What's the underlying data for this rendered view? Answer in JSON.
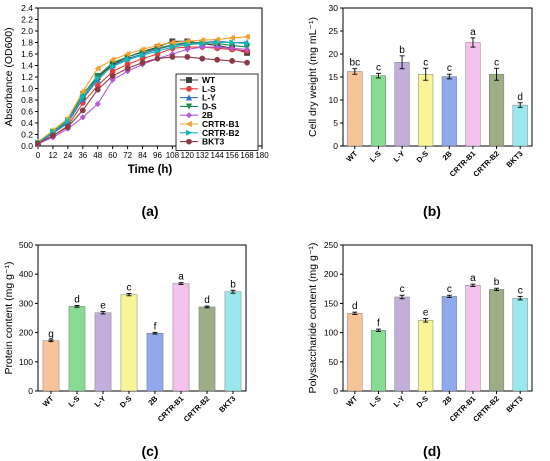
{
  "figure": {
    "panel_labels": [
      "(a)",
      "(b)",
      "(c)",
      "(d)"
    ]
  },
  "chart_data": [
    {
      "type": "line",
      "panel": "(a)",
      "xlabel": "Time (h)",
      "ylabel": "Absorbance (OD600)",
      "xlim": [
        0,
        180
      ],
      "ylim": [
        0.0,
        2.4
      ],
      "xticks": [
        0,
        12,
        24,
        36,
        48,
        60,
        72,
        84,
        96,
        108,
        120,
        132,
        144,
        156,
        168,
        180
      ],
      "yticks": [
        0.0,
        0.2,
        0.4,
        0.6,
        0.8,
        1.0,
        1.2,
        1.4,
        1.6,
        1.8,
        2.0,
        2.2,
        2.4
      ],
      "ytick_labels": [
        "0.0",
        "0.2",
        "0.4",
        "0.6",
        "0.8",
        "1.0",
        "1.2",
        "1.4",
        "1.6",
        "1.8",
        "2.0",
        "2.2",
        "2.4"
      ],
      "grid": false,
      "legend_position": "right",
      "x": [
        0,
        12,
        24,
        36,
        48,
        60,
        72,
        84,
        96,
        108,
        120,
        132,
        144,
        156,
        168
      ],
      "series": [
        {
          "name": "WT",
          "color": "#3b3b3b",
          "marker": "square",
          "values": [
            0.05,
            0.22,
            0.42,
            0.85,
            1.2,
            1.42,
            1.55,
            1.64,
            1.72,
            1.82,
            1.82,
            1.78,
            1.75,
            1.7,
            1.62
          ]
        },
        {
          "name": "L-S",
          "color": "#e83a3a",
          "marker": "circle",
          "values": [
            0.05,
            0.18,
            0.35,
            0.75,
            1.05,
            1.3,
            1.42,
            1.52,
            1.6,
            1.7,
            1.72,
            1.72,
            1.7,
            1.68,
            1.65
          ]
        },
        {
          "name": "L-Y",
          "color": "#2e74c8",
          "marker": "triangle-up",
          "values": [
            0.06,
            0.22,
            0.4,
            0.82,
            1.15,
            1.4,
            1.52,
            1.6,
            1.68,
            1.75,
            1.78,
            1.8,
            1.82,
            1.8,
            1.8
          ]
        },
        {
          "name": "D-S",
          "color": "#1a8c4a",
          "marker": "triangle-down",
          "values": [
            0.05,
            0.25,
            0.45,
            0.9,
            1.22,
            1.45,
            1.55,
            1.63,
            1.7,
            1.76,
            1.8,
            1.8,
            1.78,
            1.75,
            1.72
          ]
        },
        {
          "name": "2B",
          "color": "#b35ad8",
          "marker": "diamond",
          "values": [
            0.04,
            0.15,
            0.3,
            0.5,
            0.73,
            1.15,
            1.3,
            1.42,
            1.52,
            1.6,
            1.68,
            1.72,
            1.72,
            1.7,
            1.68
          ]
        },
        {
          "name": "CRTR-B1",
          "color": "#f0a030",
          "marker": "triangle-left",
          "values": [
            0.07,
            0.27,
            0.48,
            0.95,
            1.35,
            1.5,
            1.6,
            1.68,
            1.75,
            1.8,
            1.82,
            1.84,
            1.85,
            1.88,
            1.9
          ]
        },
        {
          "name": "CRTR-B2",
          "color": "#18b5b0",
          "marker": "triangle-right",
          "values": [
            0.06,
            0.24,
            0.43,
            0.85,
            1.18,
            1.38,
            1.5,
            1.58,
            1.65,
            1.72,
            1.76,
            1.78,
            1.8,
            1.8,
            1.78
          ]
        },
        {
          "name": "BKT3",
          "color": "#8b3a46",
          "marker": "circle",
          "values": [
            0.04,
            0.18,
            0.33,
            0.62,
            0.98,
            1.22,
            1.35,
            1.45,
            1.52,
            1.55,
            1.55,
            1.52,
            1.5,
            1.48,
            1.45
          ]
        }
      ]
    },
    {
      "type": "bar",
      "panel": "(b)",
      "ylabel": "Cell dry weight (mg mL⁻¹)",
      "ylim": [
        0,
        30
      ],
      "yticks": [
        0,
        5,
        10,
        15,
        20,
        25,
        30
      ],
      "ytick_labels": [
        "0",
        "5",
        "10",
        "15",
        "20",
        "25",
        "30"
      ],
      "grid": false,
      "categories": [
        "WT",
        "L-S",
        "L-Y",
        "D-S",
        "2B",
        "CRTR-B1",
        "CRTR-B2",
        "BKT3"
      ],
      "values": [
        16.2,
        15.3,
        18.2,
        15.6,
        15.1,
        22.5,
        15.6,
        8.9
      ],
      "errors": [
        0.6,
        0.5,
        1.4,
        1.3,
        0.5,
        1.0,
        1.3,
        0.5
      ],
      "significance_letters": [
        "bc",
        "c",
        "b",
        "c",
        "c",
        "a",
        "c",
        "d"
      ],
      "colors": [
        "#f7c49a",
        "#86dc92",
        "#c2addb",
        "#f9f495",
        "#8fa8ec",
        "#f5c2ee",
        "#9dad85",
        "#99e8ee"
      ]
    },
    {
      "type": "bar",
      "panel": "(c)",
      "ylabel": "Protein content (mg g⁻¹)",
      "ylim": [
        0,
        500
      ],
      "yticks": [
        0,
        100,
        200,
        300,
        400,
        500
      ],
      "ytick_labels": [
        "0",
        "100",
        "200",
        "300",
        "400",
        "500"
      ],
      "grid": false,
      "categories": [
        "WT",
        "L-S",
        "L-Y",
        "D-S",
        "2B",
        "CRTR-B1",
        "CRTR-B2",
        "BKT3"
      ],
      "values": [
        172,
        290,
        268,
        330,
        198,
        368,
        288,
        340
      ],
      "errors": [
        3,
        3,
        4,
        4,
        3,
        3,
        3,
        5
      ],
      "significance_letters": [
        "g",
        "d",
        "e",
        "c",
        "f",
        "a",
        "d",
        "b"
      ],
      "colors": [
        "#f7c49a",
        "#86dc92",
        "#c2addb",
        "#f9f495",
        "#8fa8ec",
        "#f5c2ee",
        "#9dad85",
        "#99e8ee"
      ]
    },
    {
      "type": "bar",
      "panel": "(d)",
      "ylabel": "Polysaccharide content (mg g⁻¹)",
      "ylim": [
        0,
        250
      ],
      "yticks": [
        0,
        50,
        100,
        150,
        200,
        250
      ],
      "ytick_labels": [
        "0",
        "50",
        "100",
        "150",
        "200",
        "250"
      ],
      "grid": false,
      "categories": [
        "WT",
        "L-S",
        "L-Y",
        "D-S",
        "2B",
        "CRTR-B1",
        "CRTR-B2",
        "BKT3"
      ],
      "values": [
        133,
        104,
        161,
        121,
        162,
        181,
        174,
        159
      ],
      "errors": [
        2,
        2,
        3,
        3,
        2,
        2,
        2,
        3
      ],
      "significance_letters": [
        "d",
        "f",
        "c",
        "e",
        "c",
        "a",
        "b",
        "c"
      ],
      "colors": [
        "#f7c49a",
        "#86dc92",
        "#c2addb",
        "#f9f495",
        "#8fa8ec",
        "#f5c2ee",
        "#9dad85",
        "#99e8ee"
      ]
    }
  ]
}
